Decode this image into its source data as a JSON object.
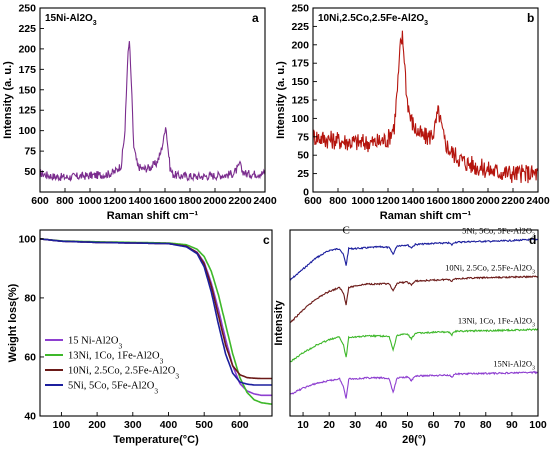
{
  "chart_data": [
    {
      "panel": "a",
      "type": "line",
      "title": "15Ni-Al2O3",
      "xlabel": "Raman shift cm⁻¹",
      "ylabel": "Intensity (a. u.)",
      "xlim": [
        600,
        2400
      ],
      "ylim": [
        25,
        250
      ],
      "xticks": [
        "600",
        "800",
        "1000",
        "1200",
        "1400",
        "1600",
        "1800",
        "2000",
        "2200",
        "2400"
      ],
      "yticks": [
        "50",
        "75",
        "100",
        "125",
        "150",
        "175",
        "200",
        "225",
        "250"
      ],
      "series": [
        {
          "color": "#7b2d8e",
          "noise": 5,
          "x": [
            600,
            650,
            700,
            800,
            900,
            1000,
            1100,
            1150,
            1200,
            1250,
            1280,
            1300,
            1315,
            1330,
            1350,
            1380,
            1420,
            1480,
            1530,
            1560,
            1590,
            1605,
            1620,
            1640,
            1660,
            1700,
            1800,
            1900,
            2000,
            2100,
            2150,
            2190,
            2200,
            2210,
            2250,
            2300,
            2400
          ],
          "values": [
            48,
            46,
            44,
            43,
            44,
            45,
            46,
            47,
            50,
            58,
            100,
            185,
            210,
            160,
            80,
            57,
            53,
            55,
            60,
            70,
            90,
            108,
            85,
            55,
            47,
            45,
            44,
            44,
            45,
            46,
            48,
            55,
            62,
            52,
            47,
            47,
            48
          ]
        }
      ]
    },
    {
      "panel": "b",
      "type": "line",
      "title": "10Ni,2.5Co,2.5Fe-Al2O3",
      "xlabel": "Raman shift cm⁻¹",
      "ylabel": "Intensity (a. u.)",
      "xlim": [
        600,
        2400
      ],
      "ylim": [
        0,
        250
      ],
      "xticks": [
        "600",
        "800",
        "1000",
        "1200",
        "1400",
        "1600",
        "1800",
        "2000",
        "2200",
        "2400"
      ],
      "yticks": [
        "0",
        "25",
        "50",
        "75",
        "100",
        "125",
        "150",
        "175",
        "200",
        "225",
        "250"
      ],
      "series": [
        {
          "color": "#b5150e",
          "noise": 13,
          "x": [
            600,
            700,
            800,
            900,
            1000,
            1100,
            1200,
            1250,
            1280,
            1300,
            1315,
            1330,
            1350,
            1380,
            1420,
            1480,
            1530,
            1570,
            1590,
            1605,
            1620,
            1650,
            1700,
            1800,
            1900,
            2000,
            2100,
            2200,
            2300,
            2400
          ],
          "values": [
            76,
            72,
            70,
            68,
            67,
            67,
            72,
            90,
            150,
            200,
            210,
            185,
            130,
            100,
            85,
            75,
            75,
            82,
            100,
            110,
            95,
            70,
            55,
            42,
            35,
            30,
            27,
            25,
            25,
            25
          ]
        }
      ]
    },
    {
      "panel": "c",
      "type": "line",
      "xlabel": "Temperature(°C)",
      "ylabel": "Weight loss(%)",
      "xlim": [
        40,
        690
      ],
      "ylim": [
        40,
        103
      ],
      "xticks": [
        "100",
        "200",
        "300",
        "400",
        "500",
        "600"
      ],
      "yticks": [
        "40",
        "60",
        "80",
        "100"
      ],
      "legend_position": "bottom-left",
      "series": [
        {
          "name": "15 Ni-Al2O3",
          "color": "#8e3fd0",
          "x": [
            40,
            100,
            200,
            300,
            400,
            450,
            480,
            500,
            520,
            540,
            560,
            580,
            600,
            620,
            640,
            660,
            690
          ],
          "values": [
            100,
            99.2,
            98.8,
            98.6,
            98.4,
            97.5,
            95.5,
            92,
            85,
            76,
            66,
            57,
            51,
            48.5,
            47.5,
            47,
            47
          ]
        },
        {
          "name": "13Ni, 1Co, 1Fe-Al2O3",
          "color": "#3eb82a",
          "x": [
            40,
            100,
            200,
            300,
            400,
            450,
            480,
            500,
            520,
            540,
            560,
            580,
            600,
            620,
            640,
            660,
            690
          ],
          "values": [
            100,
            99.3,
            99,
            98.8,
            98.6,
            98,
            96.5,
            94,
            89,
            81,
            71,
            61,
            53,
            48,
            45.5,
            44.5,
            44
          ]
        },
        {
          "name": "10Ni, 2.5Co, 2.5Fe-Al2O3",
          "color": "#6b1a18",
          "x": [
            40,
            100,
            200,
            300,
            400,
            450,
            480,
            500,
            520,
            540,
            560,
            580,
            600,
            620,
            640,
            660,
            690
          ],
          "values": [
            100,
            99.2,
            98.8,
            98.6,
            98.4,
            97.5,
            95.3,
            91.5,
            84,
            74,
            64,
            57,
            54,
            53,
            52.8,
            52.7,
            52.7
          ]
        },
        {
          "name": "5Ni, 5Co, 5Fe-Al2O3",
          "color": "#1c1f9e",
          "x": [
            40,
            100,
            200,
            300,
            400,
            450,
            480,
            500,
            520,
            540,
            560,
            580,
            600,
            620,
            640,
            660,
            690
          ],
          "values": [
            100,
            99.2,
            98.8,
            98.6,
            98.4,
            97.3,
            95,
            90.5,
            82,
            71,
            61,
            54.5,
            51.5,
            50.8,
            50.5,
            50.5,
            50.5
          ]
        }
      ]
    },
    {
      "panel": "d",
      "type": "line",
      "xlabel": "2θ(°)",
      "ylabel": "Intensity",
      "xlim": [
        5,
        100
      ],
      "xticks": [
        "10",
        "20",
        "30",
        "40",
        "50",
        "60",
        "70",
        "80",
        "90",
        "100"
      ],
      "peak_label": "C",
      "series": [
        {
          "name": "5Ni, 5Co, 5Fe-Al2O3",
          "color": "#1c1f9e",
          "x": [
            5,
            10,
            15,
            20,
            24,
            25.5,
            26.5,
            27.5,
            30,
            35,
            40,
            43,
            44.5,
            46,
            50,
            51.5,
            53,
            60,
            66,
            67,
            68,
            75,
            85,
            100
          ],
          "values": [
            0.27,
            0.21,
            0.15,
            0.11,
            0.1,
            0.135,
            0.19,
            0.1,
            0.1,
            0.095,
            0.09,
            0.095,
            0.13,
            0.085,
            0.08,
            0.095,
            0.078,
            0.072,
            0.07,
            0.08,
            0.066,
            0.062,
            0.06,
            0.05
          ]
        },
        {
          "name": "10Ni, 2.5Co, 2.5Fe-Al2O3",
          "color": "#6b1a18",
          "x": [
            5,
            10,
            15,
            20,
            24,
            25.5,
            26.5,
            27.5,
            30,
            35,
            40,
            43,
            44.5,
            46,
            50,
            51.5,
            53,
            60,
            66,
            67,
            68,
            75,
            85,
            100
          ],
          "values": [
            0.5,
            0.43,
            0.37,
            0.33,
            0.31,
            0.34,
            0.4,
            0.31,
            0.3,
            0.29,
            0.29,
            0.29,
            0.33,
            0.285,
            0.28,
            0.295,
            0.275,
            0.27,
            0.265,
            0.275,
            0.262,
            0.258,
            0.255,
            0.25
          ]
        },
        {
          "name": "13Ni, 1Co, 1Fe-Al2O3",
          "color": "#3eb82a",
          "x": [
            5,
            10,
            15,
            20,
            24,
            25.5,
            26.5,
            27.5,
            30,
            35,
            40,
            43,
            44.5,
            46,
            50,
            51.5,
            53,
            60,
            66,
            67,
            68,
            75,
            85,
            100
          ],
          "values": [
            0.71,
            0.66,
            0.62,
            0.59,
            0.575,
            0.62,
            0.685,
            0.575,
            0.575,
            0.57,
            0.57,
            0.575,
            0.645,
            0.565,
            0.56,
            0.585,
            0.555,
            0.55,
            0.548,
            0.565,
            0.545,
            0.542,
            0.54,
            0.535
          ]
        },
        {
          "name": "15Ni-Al2O3",
          "color": "#8e3fd0",
          "x": [
            5,
            10,
            15,
            20,
            24,
            25.5,
            26.5,
            27.5,
            30,
            35,
            40,
            43,
            44.5,
            46,
            50,
            51.5,
            53,
            60,
            66,
            67,
            68,
            75,
            85,
            100
          ],
          "values": [
            0.885,
            0.85,
            0.825,
            0.81,
            0.8,
            0.845,
            0.905,
            0.8,
            0.8,
            0.795,
            0.795,
            0.8,
            0.875,
            0.795,
            0.79,
            0.81,
            0.785,
            0.782,
            0.78,
            0.79,
            0.775,
            0.772,
            0.77,
            0.765
          ]
        }
      ]
    }
  ]
}
